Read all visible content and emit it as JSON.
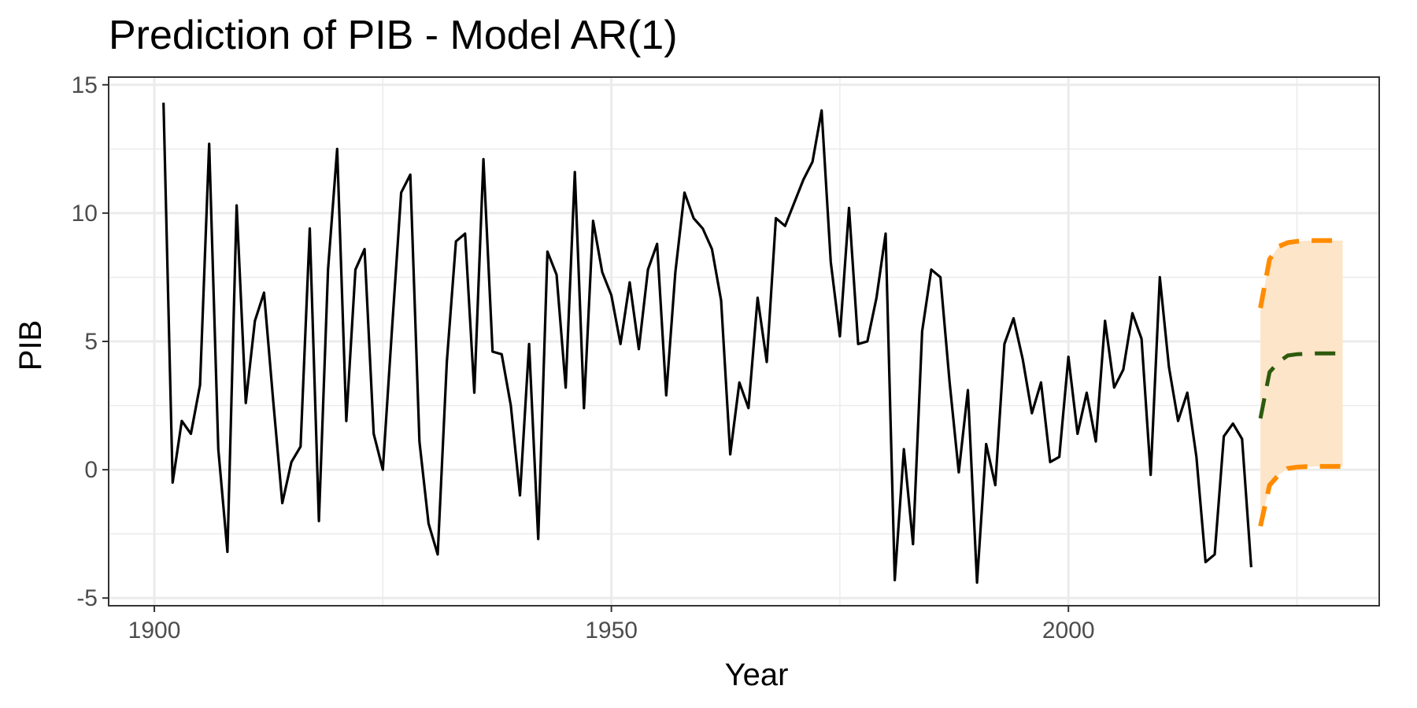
{
  "chart_data": {
    "type": "line",
    "title": "Prediction of PIB - Model AR(1)",
    "xlabel": "Year",
    "ylabel": "PIB",
    "xlim": [
      1895,
      2034
    ],
    "ylim": [
      -5.3,
      15.3
    ],
    "x_ticks": [
      1900,
      1950,
      2000
    ],
    "x_tick_labels": [
      "1900",
      "1950",
      "2000"
    ],
    "x_minor_ticks": [
      1925,
      1975,
      2025
    ],
    "y_ticks": [
      -5,
      0,
      5,
      10,
      15
    ],
    "y_tick_labels": [
      "-5",
      "0",
      "5",
      "10",
      "15"
    ],
    "y_minor_ticks": [
      -2.5,
      2.5,
      7.5,
      12.5
    ],
    "grid": true,
    "legend": "none",
    "colors": {
      "observed": "#000000",
      "forecast": "#2d5a0e",
      "interval": "#ff8c00",
      "band": "#fde5c9"
    },
    "series": [
      {
        "role": "observed",
        "x": [
          1901,
          1902,
          1903,
          1904,
          1905,
          1906,
          1907,
          1908,
          1909,
          1910,
          1911,
          1912,
          1913,
          1914,
          1915,
          1916,
          1917,
          1918,
          1919,
          1920,
          1921,
          1922,
          1923,
          1924,
          1925,
          1926,
          1927,
          1928,
          1929,
          1930,
          1931,
          1932,
          1933,
          1934,
          1935,
          1936,
          1937,
          1938,
          1939,
          1940,
          1941,
          1942,
          1943,
          1944,
          1945,
          1946,
          1947,
          1948,
          1949,
          1950,
          1951,
          1952,
          1953,
          1954,
          1955,
          1956,
          1957,
          1958,
          1959,
          1960,
          1961,
          1962,
          1963,
          1964,
          1965,
          1966,
          1967,
          1968,
          1969,
          1970,
          1971,
          1972,
          1973,
          1974,
          1975,
          1976,
          1977,
          1978,
          1979,
          1980,
          1981,
          1982,
          1983,
          1984,
          1985,
          1986,
          1987,
          1988,
          1989,
          1990,
          1991,
          1992,
          1993,
          1994,
          1995,
          1996,
          1997,
          1998,
          1999,
          2000,
          2001,
          2002,
          2003,
          2004,
          2005,
          2006,
          2007,
          2008,
          2009,
          2010,
          2011,
          2012,
          2013,
          2014,
          2015,
          2016,
          2017,
          2018,
          2019,
          2020
        ],
        "y": [
          14.3,
          -0.5,
          1.9,
          1.4,
          3.3,
          12.7,
          0.8,
          -3.2,
          10.3,
          2.6,
          5.8,
          6.9,
          2.7,
          -1.3,
          0.3,
          0.9,
          9.4,
          -2.0,
          7.8,
          12.5,
          1.9,
          7.8,
          8.6,
          1.4,
          0.0,
          5.5,
          10.8,
          11.5,
          1.1,
          -2.1,
          -3.3,
          4.2,
          8.9,
          9.2,
          3.0,
          12.1,
          4.6,
          4.5,
          2.5,
          -1.0,
          4.9,
          -2.7,
          8.5,
          7.6,
          3.2,
          11.6,
          2.4,
          9.7,
          7.7,
          6.8,
          4.9,
          7.3,
          4.7,
          7.8,
          8.8,
          2.9,
          7.7,
          10.8,
          9.8,
          9.4,
          8.6,
          6.6,
          0.6,
          3.4,
          2.4,
          6.7,
          4.2,
          9.8,
          9.5,
          10.4,
          11.3,
          12.0,
          14.0,
          8.1,
          5.2,
          10.2,
          4.9,
          5.0,
          6.7,
          9.2,
          -4.3,
          0.8,
          -2.9,
          5.4,
          7.8,
          7.5,
          3.4,
          -0.1,
          3.1,
          -4.4,
          1.0,
          -0.6,
          4.9,
          5.9,
          4.3,
          2.2,
          3.4,
          0.3,
          0.5,
          4.4,
          1.4,
          3.0,
          1.1,
          5.8,
          3.2,
          3.9,
          6.1,
          5.1,
          -0.2,
          7.5,
          4.0,
          1.9,
          3.0,
          0.5,
          -3.6,
          -3.3,
          1.3,
          1.8,
          1.2,
          -3.8
        ]
      },
      {
        "role": "forecast",
        "x": [
          2021,
          2022,
          2023,
          2024,
          2025,
          2026,
          2027,
          2028,
          2029,
          2030
        ],
        "y": [
          2.0,
          3.8,
          4.2,
          4.45,
          4.5,
          4.52,
          4.53,
          4.53,
          4.53,
          4.53
        ]
      },
      {
        "role": "upper",
        "x": [
          2021,
          2022,
          2023,
          2024,
          2025,
          2026,
          2027,
          2028,
          2029,
          2030
        ],
        "y": [
          6.3,
          8.2,
          8.7,
          8.85,
          8.9,
          8.92,
          8.93,
          8.93,
          8.93,
          8.93
        ]
      },
      {
        "role": "lower",
        "x": [
          2021,
          2022,
          2023,
          2024,
          2025,
          2026,
          2027,
          2028,
          2029,
          2030
        ],
        "y": [
          -2.2,
          -0.6,
          -0.2,
          0.05,
          0.1,
          0.12,
          0.13,
          0.13,
          0.13,
          0.13
        ]
      }
    ]
  }
}
